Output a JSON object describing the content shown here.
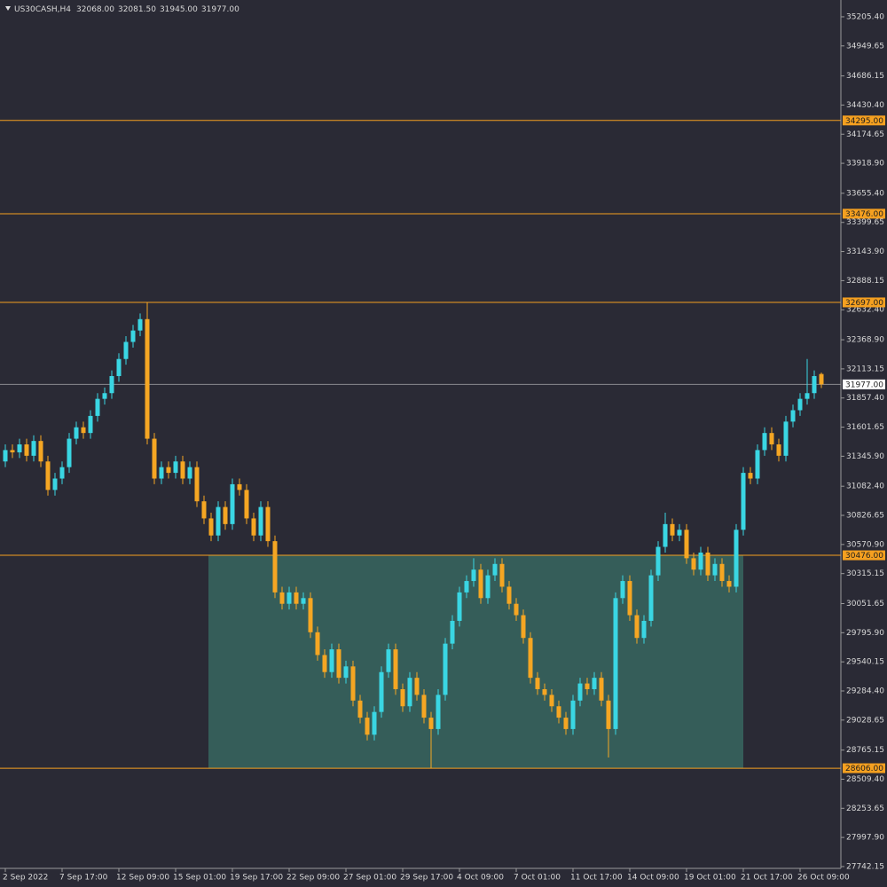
{
  "chart_data": {
    "type": "candlestick",
    "title": "US30CASH,H4",
    "ohlc_header": [
      "32068.00",
      "32081.50",
      "31945.00",
      "31977.00"
    ],
    "bull_color": "#3ad6e3",
    "bear_color": "#f5a623",
    "level_color": "#f5a020",
    "categories": [
      "2 Sep 2022",
      null,
      null,
      null,
      null,
      null,
      null,
      null,
      "7 Sep 17:00",
      null,
      null,
      null,
      null,
      null,
      null,
      null,
      "12 Sep 09:00",
      null,
      null,
      null,
      null,
      null,
      null,
      null,
      "15 Sep 01:00",
      null,
      null,
      null,
      null,
      null,
      null,
      null,
      "19 Sep 17:00",
      null,
      null,
      null,
      null,
      null,
      null,
      null,
      "22 Sep 09:00",
      null,
      null,
      null,
      null,
      null,
      null,
      null,
      "27 Sep 01:00",
      null,
      null,
      null,
      null,
      null,
      null,
      null,
      "29 Sep 17:00",
      null,
      null,
      null,
      null,
      null,
      null,
      null,
      "4 Oct 09:00",
      null,
      null,
      null,
      null,
      null,
      null,
      null,
      "7 Oct 01:00",
      null,
      null,
      null,
      null,
      null,
      null,
      null,
      "11 Oct 17:00",
      null,
      null,
      null,
      null,
      null,
      null,
      null,
      "14 Oct 09:00",
      null,
      null,
      null,
      null,
      null,
      null,
      null,
      "19 Oct 01:00",
      null,
      null,
      null,
      null,
      null,
      null,
      null,
      "21 Oct 17:00",
      null,
      null,
      null,
      null,
      null,
      null,
      null,
      "26 Oct 09:00",
      null,
      null,
      null
    ],
    "open": [
      31300,
      31400,
      31380,
      31450,
      31350,
      31480,
      31300,
      31050,
      31150,
      31250,
      31500,
      31600,
      31550,
      31700,
      31850,
      31900,
      32050,
      32200,
      32350,
      32450,
      32550,
      31500,
      31150,
      31250,
      31200,
      31300,
      31150,
      31250,
      30950,
      30800,
      30650,
      30900,
      30750,
      31100,
      31050,
      30800,
      30650,
      30900,
      30600,
      30150,
      30050,
      30150,
      30050,
      30100,
      29800,
      29600,
      29450,
      29650,
      29400,
      29500,
      29200,
      29050,
      28900,
      29100,
      29450,
      29650,
      29300,
      29150,
      29400,
      29250,
      29050,
      28950,
      29250,
      29700,
      29900,
      30150,
      30250,
      30350,
      30100,
      30300,
      30400,
      30200,
      30050,
      29950,
      29750,
      29400,
      29300,
      29250,
      29150,
      29050,
      28950,
      29200,
      29350,
      29300,
      29400,
      29200,
      28950,
      30100,
      30250,
      29950,
      29750,
      29900,
      30300,
      30550,
      30750,
      30650,
      30700,
      30450,
      30350,
      30500,
      30300,
      30400,
      30250,
      30200,
      30700,
      31200,
      31150,
      31400,
      31550,
      31450,
      31350,
      31650,
      31750,
      31850,
      31900,
      32068
    ],
    "high": [
      31450,
      31450,
      31500,
      31500,
      31530,
      31530,
      31350,
      31200,
      31300,
      31550,
      31650,
      31650,
      31750,
      31900,
      31950,
      32100,
      32250,
      32400,
      32500,
      32600,
      32697,
      31550,
      31300,
      31300,
      31350,
      31350,
      31300,
      31300,
      31000,
      30850,
      30950,
      30950,
      31150,
      31150,
      31100,
      30850,
      30950,
      30950,
      30650,
      30200,
      30200,
      30200,
      30150,
      30150,
      29850,
      29650,
      29700,
      29700,
      29550,
      29550,
      29250,
      29100,
      29150,
      29500,
      29700,
      29700,
      29350,
      29450,
      29450,
      29300,
      29100,
      29300,
      29750,
      29950,
      30200,
      30300,
      30450,
      30400,
      30350,
      30450,
      30450,
      30250,
      30100,
      30000,
      29800,
      29450,
      29350,
      29300,
      29200,
      29100,
      29250,
      29400,
      29400,
      29450,
      29450,
      29250,
      30150,
      30300,
      30300,
      30000,
      29950,
      30350,
      30600,
      30850,
      30800,
      30750,
      30750,
      30500,
      30550,
      30550,
      30450,
      30450,
      30300,
      30750,
      31250,
      31250,
      31450,
      31600,
      31600,
      31500,
      31700,
      31800,
      31900,
      32200,
      32100,
      32081.5
    ],
    "low": [
      31250,
      31330,
      31330,
      31300,
      31300,
      31250,
      31000,
      31000,
      31100,
      31200,
      31450,
      31500,
      31500,
      31650,
      31800,
      31850,
      32000,
      32150,
      32300,
      32400,
      31450,
      31100,
      31100,
      31150,
      31150,
      31100,
      31100,
      30900,
      30750,
      30600,
      30600,
      30700,
      30700,
      31000,
      30750,
      30600,
      30600,
      30550,
      30100,
      30000,
      30000,
      30000,
      30000,
      29750,
      29550,
      29400,
      29400,
      29350,
      29350,
      29150,
      29000,
      28850,
      28850,
      29050,
      29400,
      29250,
      29100,
      29100,
      29200,
      29000,
      28606,
      28900,
      29200,
      29650,
      29850,
      30100,
      30200,
      30050,
      30050,
      30250,
      30150,
      30000,
      29900,
      29700,
      29350,
      29250,
      29200,
      29100,
      29000,
      28900,
      28900,
      29150,
      29250,
      29250,
      29150,
      28700,
      28900,
      30050,
      29900,
      29700,
      29700,
      29850,
      30250,
      30500,
      30600,
      30600,
      30400,
      30300,
      30300,
      30250,
      30250,
      30200,
      30150,
      30150,
      30650,
      31100,
      31100,
      31350,
      31400,
      31300,
      31300,
      31600,
      31700,
      31800,
      31850,
      31945
    ],
    "close": [
      31400,
      31380,
      31450,
      31350,
      31480,
      31300,
      31050,
      31150,
      31250,
      31500,
      31600,
      31550,
      31700,
      31850,
      31900,
      32050,
      32200,
      32350,
      32450,
      32550,
      31500,
      31150,
      31250,
      31200,
      31300,
      31150,
      31250,
      30950,
      30800,
      30650,
      30900,
      30750,
      31100,
      31050,
      30800,
      30650,
      30900,
      30600,
      30150,
      30050,
      30150,
      30050,
      30100,
      29800,
      29600,
      29450,
      29650,
      29400,
      29500,
      29200,
      29050,
      28900,
      29100,
      29450,
      29650,
      29300,
      29150,
      29400,
      29250,
      29050,
      28950,
      29250,
      29700,
      29900,
      30150,
      30250,
      30350,
      30100,
      30300,
      30400,
      30200,
      30050,
      29950,
      29750,
      29400,
      29300,
      29250,
      29150,
      29050,
      28950,
      29200,
      29350,
      29300,
      29400,
      29200,
      28950,
      30100,
      30250,
      29950,
      29750,
      29900,
      30300,
      30550,
      30750,
      30650,
      30700,
      30450,
      30350,
      30500,
      30300,
      30400,
      30250,
      30200,
      30700,
      31200,
      31150,
      31400,
      31550,
      31450,
      31350,
      31650,
      31750,
      31850,
      31900,
      32050,
      31977
    ],
    "ylim": [
      27734,
      35353
    ],
    "yticks": [
      {
        "value": 35205.4,
        "label": "35205.40"
      },
      34949.65,
      34686.15,
      {
        "value": 34430.4,
        "label": "34430.40"
      },
      34174.65,
      {
        "value": 33918.9,
        "label": "33918.90"
      },
      {
        "value": 33655.4,
        "label": "33655.40"
      },
      33399.65,
      {
        "value": 33143.9,
        "label": "33143.90"
      },
      32888.15,
      {
        "value": 32632.4,
        "label": "32632.40"
      },
      {
        "value": 32368.9,
        "label": "32368.90"
      },
      32113.15,
      {
        "value": 31857.4,
        "label": "31857.40"
      },
      31601.65,
      {
        "value": 31345.9,
        "label": "31345.90"
      },
      {
        "value": 31082.4,
        "label": "31082.40"
      },
      30826.65,
      {
        "value": 30570.9,
        "label": "30570.90"
      },
      30315.15,
      30051.65,
      {
        "value": 29795.9,
        "label": "29795.90"
      },
      29540.15,
      {
        "value": 29284.4,
        "label": "29284.40"
      },
      29028.65,
      28765.15,
      {
        "value": 28509.4,
        "label": "28509.40"
      },
      28253.65,
      {
        "value": 27997.9,
        "label": "27997.90"
      },
      27742.15
    ],
    "levels": [
      {
        "value": 34295,
        "label": "34295.00"
      },
      {
        "value": 33476,
        "label": "33476.00"
      },
      {
        "value": 32697,
        "label": "32697.00"
      },
      {
        "value": 30476,
        "label": "30476.00"
      },
      {
        "value": 28606,
        "label": "28606.00"
      }
    ],
    "current_price": {
      "value": 31977,
      "label": "31977.00"
    }
  }
}
